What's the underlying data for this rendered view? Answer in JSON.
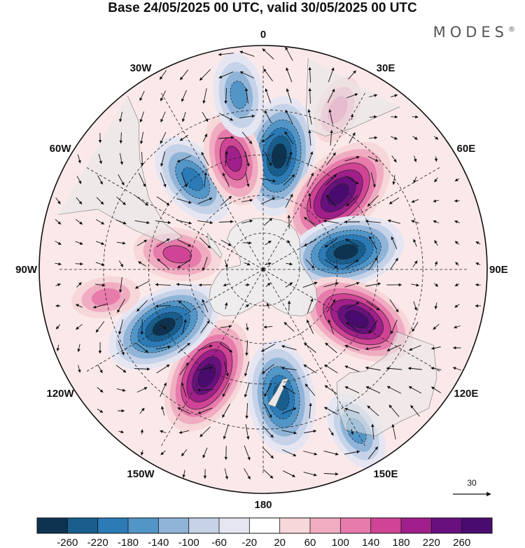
{
  "header": {
    "title": "Base 24/05/2025 00 UTC, valid 30/05/2025 00 UTC",
    "brand": "MODES",
    "brand_mark": "®"
  },
  "map": {
    "projection": "south-polar-stereographic",
    "meridian_labels": [
      {
        "text": "0",
        "lon": 0
      },
      {
        "text": "30E",
        "lon": 30
      },
      {
        "text": "60E",
        "lon": 60
      },
      {
        "text": "90E",
        "lon": 90
      },
      {
        "text": "120E",
        "lon": 120
      },
      {
        "text": "150E",
        "lon": 150
      },
      {
        "text": "180",
        "lon": 180
      },
      {
        "text": "150W",
        "lon": -150
      },
      {
        "text": "120W",
        "lon": -120
      },
      {
        "text": "90W",
        "lon": -90
      },
      {
        "text": "60W",
        "lon": -60
      },
      {
        "text": "30W",
        "lon": -30
      }
    ],
    "latitude_circles": [
      -75,
      -60,
      -45,
      -30
    ],
    "anomaly_centers": [
      {
        "lon": 8,
        "lat": -45,
        "value": -220
      },
      {
        "lon": 45,
        "lat": -48,
        "value": 240
      },
      {
        "lon": 78,
        "lat": -56,
        "value": -210
      },
      {
        "lon": 118,
        "lat": -48,
        "value": 220
      },
      {
        "lon": 172,
        "lat": -40,
        "value": -200
      },
      {
        "lon": -152,
        "lat": -43,
        "value": 220
      },
      {
        "lon": -120,
        "lat": -45,
        "value": -220
      },
      {
        "lon": -80,
        "lat": -55,
        "value": 120
      },
      {
        "lon": -38,
        "lat": -45,
        "value": -150
      },
      {
        "lon": -15,
        "lat": -45,
        "value": 140
      },
      {
        "lon": -8,
        "lat": -25,
        "value": -110
      },
      {
        "lon": 25,
        "lat": -25,
        "value": 60
      },
      {
        "lon": 150,
        "lat": -22,
        "value": -100
      },
      {
        "lon": -100,
        "lat": -30,
        "value": 60
      }
    ],
    "reference_vector": {
      "value": "30"
    }
  },
  "colorbar": {
    "ticks": [
      "-260",
      "-220",
      "-180",
      "-140",
      "-100",
      "-60",
      "-20",
      "20",
      "60",
      "100",
      "140",
      "180",
      "220",
      "260"
    ],
    "colors": [
      "#0d3350",
      "#185d8c",
      "#2c7ab6",
      "#5296c8",
      "#8fb4d8",
      "#c5d2e8",
      "#e6e6f2",
      "#ffffff",
      "#f7d7d9",
      "#f0adc2",
      "#e77bab",
      "#d04495",
      "#a01f8a",
      "#69107f",
      "#4a0b70"
    ]
  }
}
